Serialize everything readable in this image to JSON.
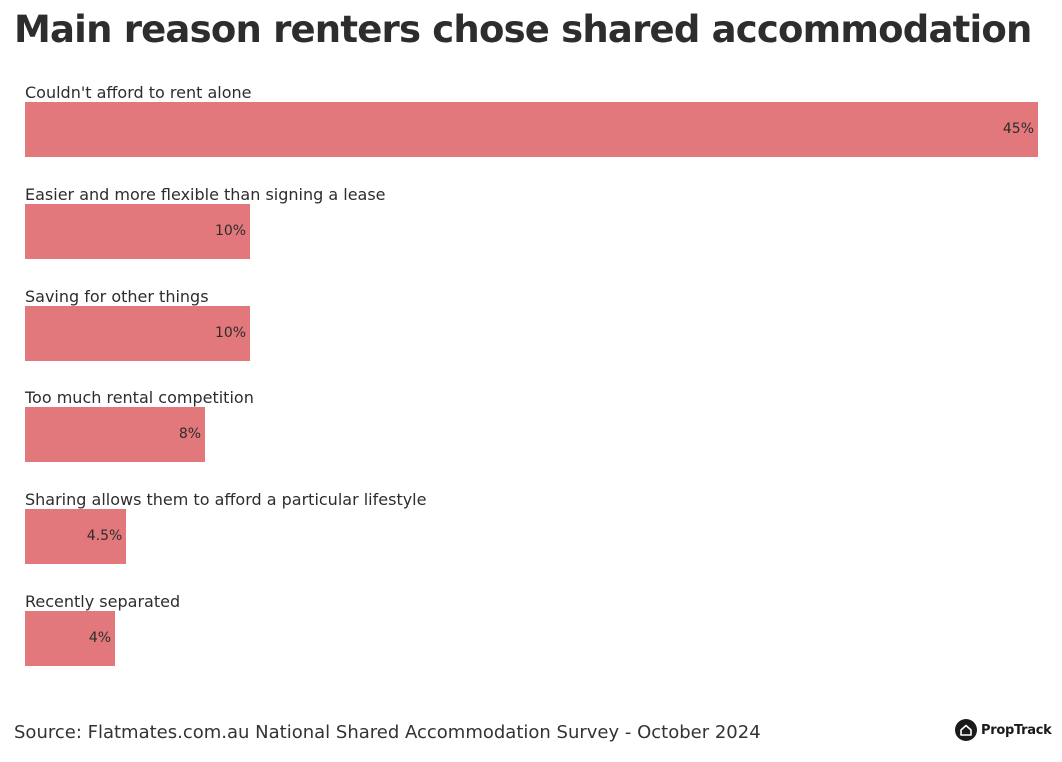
{
  "chart_data": {
    "type": "bar",
    "orientation": "horizontal",
    "title": "Main reason renters chose shared accommodation",
    "categories": [
      "Couldn't afford to rent alone",
      "Easier and more flexible than signing a lease",
      "Saving for other things",
      "Too much rental competition",
      "Sharing allows them to afford a particular lifestyle",
      "Recently separated"
    ],
    "values": [
      45,
      10,
      10,
      8,
      4.5,
      4
    ],
    "value_labels": [
      "45%",
      "10%",
      "10%",
      "8%",
      "4.5%",
      "4%"
    ],
    "unit": "%",
    "xlim": [
      0,
      45
    ],
    "grid": false,
    "legend": "none",
    "bar_color": "#e2787b",
    "source": "Source: Flatmates.com.au National Shared Accommodation Survey - October 2024"
  },
  "branding": {
    "logo_text": "PropTrack",
    "logo_icon": "proptrack-house-icon"
  }
}
